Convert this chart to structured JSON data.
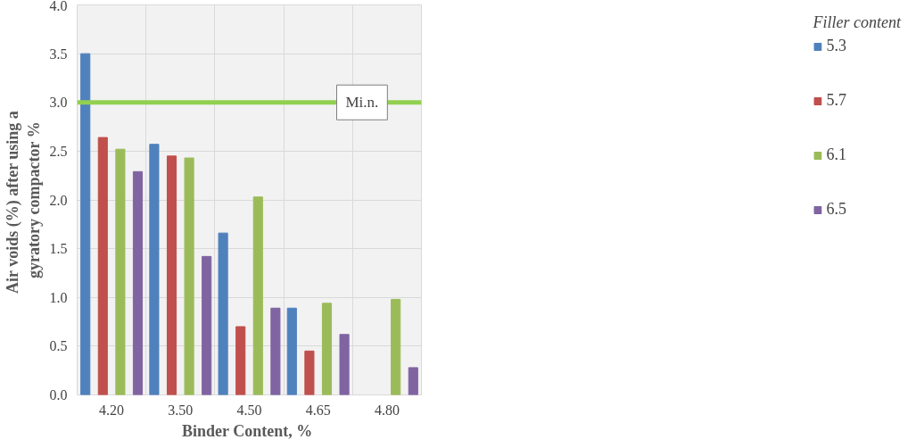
{
  "chart_data": {
    "type": "bar",
    "xlabel": "Binder Content,  %",
    "ylabel": "Air voids (%)  after using a gyratory compactor %",
    "legend_title": "Filler content",
    "categories": [
      "4.20",
      "3.50",
      "4.50",
      "4.65",
      "4.80"
    ],
    "series": [
      {
        "name": "5.3",
        "color": "#4f81bd",
        "values": [
          3.5,
          2.57,
          1.66,
          0.89,
          null
        ]
      },
      {
        "name": "5.7",
        "color": "#c0504d",
        "values": [
          2.64,
          2.45,
          0.7,
          0.45,
          null
        ]
      },
      {
        "name": "6.1",
        "color": "#9bbb59",
        "values": [
          2.52,
          2.43,
          2.03,
          0.94,
          0.98
        ]
      },
      {
        "name": "6.5",
        "color": "#8064a2",
        "values": [
          2.29,
          1.42,
          0.89,
          0.62,
          0.28
        ]
      }
    ],
    "ylim": [
      0,
      4
    ],
    "yticks": [
      {
        "value": 0,
        "label": "0.0"
      },
      {
        "value": 0.5,
        "label": "0.5"
      },
      {
        "value": 1,
        "label": "1.0"
      },
      {
        "value": 1.5,
        "label": "1.5"
      },
      {
        "value": 2,
        "label": "2.0"
      },
      {
        "value": 2.5,
        "label": "2.5"
      },
      {
        "value": 3,
        "label": "3.0"
      },
      {
        "value": 3.5,
        "label": "3.5"
      },
      {
        "value": 4,
        "label": "4.0"
      }
    ],
    "ref_lines": [
      {
        "axis": "y",
        "value": 3,
        "label": "Mi.n.",
        "color": "#92d050"
      }
    ],
    "grid": true,
    "legend": "right"
  }
}
